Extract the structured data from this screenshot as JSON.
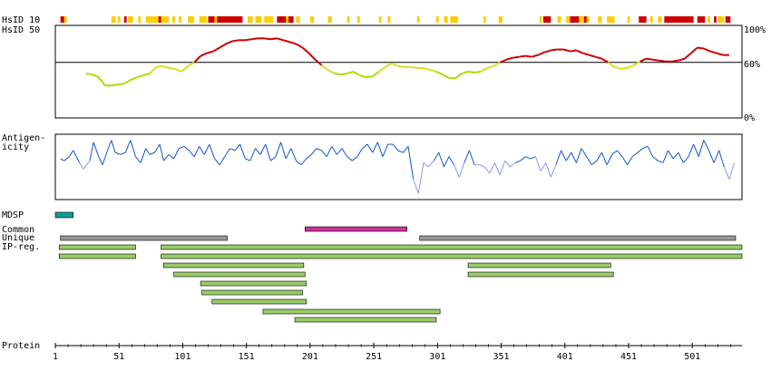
{
  "chart_data": [
    {
      "type": "heatmap",
      "rows": [
        {
          "label": "HsID 10"
        },
        {
          "label": "HsID 50"
        }
      ],
      "x_range": [
        1,
        540
      ],
      "colors": {
        "high": "#cc0000",
        "mid": "#ffcc00",
        "low": "#ffaa00"
      },
      "segments_hsid10": [
        [
          5,
          8,
          "high"
        ],
        [
          8,
          10,
          "mid"
        ],
        [
          45,
          48,
          "mid"
        ],
        [
          50,
          52,
          "mid"
        ],
        [
          55,
          57,
          "high"
        ],
        [
          58,
          62,
          "mid"
        ],
        [
          66,
          68,
          "mid"
        ],
        [
          72,
          90,
          "mid"
        ],
        [
          82,
          84,
          "high"
        ],
        [
          93,
          95,
          "mid"
        ],
        [
          98,
          100,
          "mid"
        ],
        [
          105,
          110,
          "mid"
        ],
        [
          114,
          120,
          "mid"
        ],
        [
          121,
          148,
          "high"
        ],
        [
          126,
          128,
          "mid"
        ],
        [
          152,
          156,
          "mid"
        ],
        [
          158,
          163,
          "mid"
        ],
        [
          165,
          172,
          "mid"
        ],
        [
          175,
          188,
          "high"
        ],
        [
          182,
          184,
          "mid"
        ],
        [
          190,
          193,
          "mid"
        ],
        [
          201,
          204,
          "mid"
        ],
        [
          215,
          218,
          "mid"
        ],
        [
          230,
          232,
          "mid"
        ],
        [
          238,
          240,
          "mid"
        ],
        [
          255,
          257,
          "mid"
        ],
        [
          262,
          264,
          "mid"
        ],
        [
          285,
          287,
          "mid"
        ],
        [
          300,
          302,
          "mid"
        ],
        [
          306,
          309,
          "mid"
        ],
        [
          311,
          317,
          "mid"
        ],
        [
          337,
          339,
          "mid"
        ],
        [
          349,
          352,
          "mid"
        ],
        [
          381,
          383,
          "mid"
        ],
        [
          384,
          390,
          "high"
        ],
        [
          395,
          398,
          "mid"
        ],
        [
          402,
          420,
          "mid"
        ],
        [
          405,
          412,
          "high"
        ],
        [
          416,
          418,
          "high"
        ],
        [
          427,
          430,
          "mid"
        ],
        [
          434,
          440,
          "mid"
        ],
        [
          450,
          452,
          "mid"
        ],
        [
          459,
          465,
          "high"
        ],
        [
          468,
          470,
          "mid"
        ],
        [
          474,
          477,
          "mid"
        ],
        [
          479,
          502,
          "high"
        ],
        [
          505,
          511,
          "high"
        ],
        [
          513,
          515,
          "mid"
        ],
        [
          518,
          520,
          "high"
        ],
        [
          521,
          526,
          "mid"
        ],
        [
          527,
          531,
          "high"
        ]
      ],
      "segments_hsid50": []
    },
    {
      "type": "line",
      "series_id": "hsid50",
      "x_range": [
        1,
        540
      ],
      "y_range": [
        0,
        100
      ],
      "yticks": [
        "100%",
        "60%",
        "0%"
      ],
      "reference_line": 60,
      "x": [
        25,
        30,
        35,
        40,
        45,
        50,
        55,
        60,
        65,
        70,
        75,
        80,
        85,
        90,
        95,
        100,
        105,
        110,
        115,
        120,
        125,
        130,
        135,
        140,
        145,
        150,
        155,
        160,
        165,
        170,
        175,
        180,
        185,
        190,
        195,
        200,
        205,
        210,
        215,
        220,
        225,
        230,
        235,
        240,
        245,
        250,
        255,
        260,
        265,
        270,
        275,
        280,
        285,
        290,
        295,
        300,
        305,
        310,
        315,
        320,
        325,
        330,
        335,
        340,
        345,
        350,
        355,
        360,
        365,
        370,
        375,
        380,
        385,
        390,
        395,
        400,
        405,
        410,
        415,
        420,
        425,
        430,
        435,
        440,
        445,
        450,
        455,
        460,
        465,
        470,
        475,
        480,
        485,
        490,
        495,
        500,
        505,
        510,
        515,
        520,
        525,
        530
      ],
      "y": [
        48,
        47,
        44,
        35,
        35,
        36,
        37,
        41,
        44,
        46,
        48,
        55,
        56,
        54,
        53,
        50,
        56,
        60,
        67,
        70,
        72,
        76,
        80,
        83,
        84,
        84,
        85,
        86,
        86,
        85,
        86,
        84,
        82,
        80,
        76,
        70,
        63,
        57,
        52,
        48,
        47,
        48,
        50,
        46,
        44,
        45,
        50,
        55,
        59,
        56,
        55,
        55,
        54,
        54,
        52,
        50,
        47,
        43,
        43,
        48,
        50,
        49,
        50,
        54,
        56,
        60,
        63,
        65,
        66,
        67,
        66,
        68,
        71,
        73,
        74,
        74,
        72,
        73,
        70,
        68,
        66,
        64,
        60,
        55,
        53,
        54,
        57,
        61,
        64,
        63,
        62,
        61,
        61,
        62,
        64,
        70,
        76,
        75,
        72,
        70,
        68,
        68
      ],
      "color_scale": {
        "low": "#aadd00",
        "mid": "#dddd22",
        "high": "#cc0000"
      }
    },
    {
      "type": "line",
      "series_id": "antigenicity",
      "label": [
        "Antigen-",
        "icity"
      ],
      "x_range": [
        1,
        540
      ],
      "x": [
        5,
        8,
        12,
        15,
        20,
        23,
        28,
        31,
        35,
        38,
        42,
        45,
        48,
        52,
        56,
        60,
        64,
        68,
        72,
        75,
        79,
        83,
        86,
        90,
        94,
        98,
        102,
        106,
        110,
        114,
        118,
        122,
        126,
        130,
        134,
        138,
        142,
        146,
        150,
        154,
        158,
        162,
        166,
        170,
        174,
        178,
        182,
        186,
        190,
        194,
        198,
        202,
        206,
        210,
        214,
        218,
        222,
        226,
        230,
        234,
        238,
        242,
        246,
        250,
        254,
        258,
        262,
        266,
        270,
        274,
        278,
        282,
        286,
        290,
        294,
        298,
        302,
        306,
        310,
        314,
        318,
        322,
        326,
        330,
        334,
        338,
        342,
        346,
        350,
        354,
        358,
        362,
        366,
        370,
        374,
        378,
        382,
        386,
        390,
        394,
        398,
        402,
        406,
        410,
        414,
        418,
        422,
        426,
        430,
        434,
        438,
        442,
        446,
        450,
        454,
        458,
        462,
        466,
        470,
        474,
        478,
        482,
        486,
        490,
        494,
        498,
        502,
        506,
        510,
        514,
        518,
        522,
        526,
        530,
        534
      ],
      "y": [
        0.5,
        0.4,
        0.6,
        0.9,
        0.3,
        0.0,
        0.4,
        1.3,
        0.6,
        0.2,
        0.9,
        1.4,
        0.8,
        0.7,
        0.8,
        1.4,
        0.6,
        0.3,
        1.0,
        0.7,
        0.8,
        1.2,
        0.4,
        0.7,
        0.5,
        1.0,
        1.1,
        0.9,
        0.6,
        1.1,
        0.7,
        1.2,
        0.5,
        0.2,
        0.6,
        1.0,
        0.9,
        1.2,
        0.5,
        0.4,
        1.0,
        0.7,
        1.2,
        0.4,
        0.6,
        1.3,
        0.5,
        1.0,
        0.4,
        0.2,
        0.5,
        0.7,
        1.0,
        0.9,
        0.6,
        1.1,
        0.7,
        1.0,
        0.6,
        0.4,
        0.6,
        1.0,
        1.2,
        0.8,
        1.3,
        0.6,
        1.2,
        1.2,
        0.9,
        0.8,
        1.1,
        -0.5,
        -1.2,
        0.3,
        0.1,
        0.4,
        0.8,
        0.1,
        0.6,
        0.2,
        -0.4,
        0.3,
        0.9,
        0.2,
        0.2,
        0.1,
        -0.2,
        0.3,
        -0.3,
        0.4,
        0.1,
        0.3,
        0.4,
        0.6,
        0.5,
        0.6,
        -0.1,
        0.3,
        -0.4,
        0.2,
        0.9,
        0.4,
        0.8,
        0.3,
        1.0,
        0.6,
        0.2,
        0.4,
        0.8,
        0.2,
        0.7,
        0.9,
        0.6,
        0.2,
        0.6,
        0.8,
        1.0,
        1.1,
        0.6,
        0.4,
        0.3,
        0.9,
        0.5,
        0.8,
        0.3,
        0.6,
        1.2,
        0.6,
        1.4,
        0.9,
        0.3,
        0.9,
        0.1,
        -0.5,
        0.3
      ],
      "y_range": [
        -1.4,
        1.6
      ],
      "color_high": "#1155cc",
      "color_low": "#8899ee"
    },
    {
      "type": "table",
      "series_id": "features",
      "x_range": [
        1,
        540
      ],
      "tracks": [
        {
          "label": "MDSP",
          "color": "#119999",
          "bars": [
            [
              1,
              15
            ]
          ]
        },
        {
          "label": "Common",
          "color": "#cc3399",
          "bars": [
            [
              197,
              277
            ]
          ]
        },
        {
          "label": "Unique",
          "color": "#999999",
          "bars": [
            [
              5,
              136
            ],
            [
              287,
              535
            ]
          ]
        },
        {
          "label": "IP-reg.",
          "color": "#99cc66",
          "bars": [
            [
              4,
              64
            ],
            [
              84,
              540
            ]
          ]
        }
      ],
      "extra_rows": [
        [
          [
            4,
            64
          ],
          [
            84,
            540
          ]
        ],
        [
          [
            86,
            196
          ],
          [
            325,
            437
          ]
        ],
        [
          [
            94,
            197
          ],
          [
            325,
            439
          ]
        ],
        [
          [
            115,
            198
          ]
        ],
        [
          [
            116,
            195
          ]
        ],
        [
          [
            124,
            198
          ]
        ],
        [
          [
            164,
            303
          ]
        ],
        [
          [
            189,
            300
          ]
        ]
      ]
    },
    {
      "type": "table",
      "series_id": "protein-axis",
      "label": "Protein",
      "x_range": [
        1,
        540
      ],
      "ticks": [
        1,
        51,
        101,
        151,
        201,
        251,
        301,
        351,
        401,
        451,
        501
      ]
    }
  ]
}
